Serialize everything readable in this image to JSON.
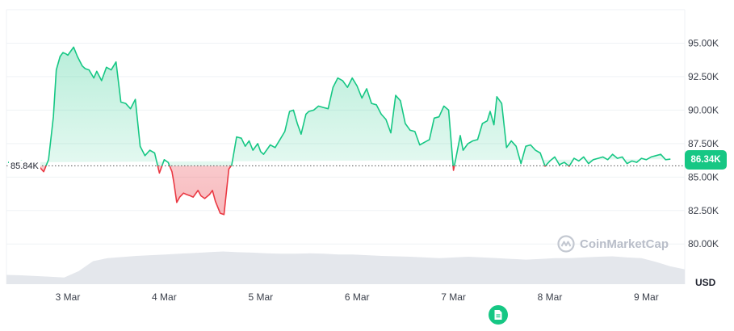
{
  "chart_data": {
    "type": "area",
    "title": "",
    "xlabel": "",
    "ylabel": "",
    "unit": "USD",
    "x_tick_labels": [
      "3 Mar",
      "4 Mar",
      "5 Mar",
      "6 Mar",
      "7 Mar",
      "8 Mar",
      "9 Mar"
    ],
    "y_tick_labels": [
      "80.00K",
      "82.50K",
      "85.00K",
      "87.50K",
      "90.00K",
      "92.50K",
      "95.00K"
    ],
    "y_ticks": [
      80000,
      82500,
      85000,
      87500,
      90000,
      92500,
      95000
    ],
    "ylim": [
      77000,
      97500
    ],
    "baseline_value": 85840,
    "baseline_label": "85.84K",
    "current_value": 86340,
    "current_label": "86.34K",
    "watermark": "CoinMarketCap",
    "grid": true,
    "colors": {
      "up": "#16c784",
      "down": "#ea3943",
      "grid": "#eff2f5",
      "volume": "#e4e7ec"
    },
    "series": [
      {
        "day_offset": [
          -0.62,
          -0.55,
          -0.48,
          -0.42,
          -0.35,
          -0.3,
          -0.25,
          -0.2,
          -0.15,
          -0.12,
          -0.08,
          -0.05,
          -0.02,
          0.0,
          0.03,
          0.06,
          0.1,
          0.15,
          0.18,
          0.22,
          0.27,
          0.3,
          0.35,
          0.4,
          0.45,
          0.5,
          0.55,
          0.6,
          0.65,
          0.7,
          0.75,
          0.8,
          0.85,
          0.9,
          0.95,
          1.0,
          1.04,
          1.08,
          1.1,
          1.13,
          1.16,
          1.2,
          1.23,
          1.27,
          1.3,
          1.35,
          1.38,
          1.42,
          1.47,
          1.5,
          1.53,
          1.58,
          1.62,
          1.67,
          1.7,
          1.75,
          1.8,
          1.84,
          1.88,
          1.92,
          1.97,
          2.0,
          2.03,
          2.06,
          2.1,
          2.15,
          2.2,
          2.25,
          2.3,
          2.34,
          2.38,
          2.42,
          2.47,
          2.5,
          2.55,
          2.6,
          2.65,
          2.7,
          2.75,
          2.8,
          2.85,
          2.9,
          2.95,
          3.0,
          3.05,
          3.1,
          3.15,
          3.2,
          3.25,
          3.3,
          3.35,
          3.4,
          3.45,
          3.5,
          3.55,
          3.6,
          3.65,
          3.7,
          3.75,
          3.8,
          3.85,
          3.9,
          3.95,
          4.0,
          4.03,
          4.07,
          4.1,
          4.15,
          4.2,
          4.25,
          4.3,
          4.35,
          4.38,
          4.42,
          4.45,
          4.5,
          4.55,
          4.6,
          4.65,
          4.7,
          4.75,
          4.8,
          4.85,
          4.9,
          4.95,
          5.0,
          5.05,
          5.1,
          5.12,
          5.15,
          5.2,
          5.25,
          5.3,
          5.35,
          5.4,
          5.45,
          5.5,
          5.55,
          5.6,
          5.65,
          5.7,
          5.75,
          5.8,
          5.85,
          5.9,
          5.95,
          6.0,
          6.05,
          6.1,
          6.15,
          6.2,
          6.25,
          6.3,
          6.35,
          6.4,
          6.45,
          6.5,
          6.55
        ],
        "values": [
          86100,
          86050,
          86200,
          85900,
          86100,
          85800,
          85400,
          86300,
          89500,
          93000,
          94000,
          94300,
          94200,
          94100,
          94400,
          94700,
          94000,
          93300,
          93100,
          93000,
          92400,
          92900,
          92200,
          93200,
          93000,
          93600,
          90600,
          90500,
          90100,
          90800,
          87300,
          86600,
          87000,
          86800,
          85300,
          86300,
          86100,
          85400,
          84600,
          83100,
          83500,
          83800,
          83700,
          83600,
          83500,
          84000,
          83600,
          83400,
          83700,
          84000,
          83200,
          82300,
          82200,
          85600,
          85900,
          88000,
          87900,
          87300,
          87700,
          87000,
          87500,
          86900,
          86700,
          87000,
          87400,
          87200,
          87800,
          88400,
          89900,
          90000,
          89000,
          88200,
          89700,
          89900,
          90000,
          90300,
          90200,
          90100,
          91700,
          92400,
          92200,
          91700,
          92400,
          91800,
          90900,
          91600,
          90500,
          90400,
          89700,
          89300,
          88300,
          91100,
          90700,
          89000,
          88500,
          88400,
          87400,
          87600,
          87800,
          89400,
          89500,
          90300,
          90000,
          85500,
          86600,
          88100,
          87000,
          87500,
          87700,
          87800,
          89000,
          89200,
          89900,
          88900,
          91000,
          90500,
          87200,
          87700,
          87300,
          86000,
          87300,
          87400,
          87000,
          86800,
          85800,
          86200,
          86500,
          85900,
          86000,
          86100,
          85800,
          86400,
          86200,
          86500,
          86000,
          86300,
          86400,
          86500,
          86300,
          86700,
          86400,
          86500,
          86000,
          86200,
          86100,
          86400,
          86300,
          86500,
          86600,
          86700,
          86300,
          86340
        ]
      }
    ],
    "volume": [
      0.25,
      0.24,
      0.22,
      0.2,
      0.18,
      0.35,
      0.62,
      0.7,
      0.73,
      0.76,
      0.78,
      0.8,
      0.82,
      0.84,
      0.86,
      0.88,
      0.86,
      0.85,
      0.83,
      0.82,
      0.82,
      0.83,
      0.82,
      0.8,
      0.8,
      0.78,
      0.76,
      0.75,
      0.74,
      0.72,
      0.7,
      0.72,
      0.74,
      0.72,
      0.7,
      0.68,
      0.66,
      0.68,
      0.7,
      0.7,
      0.72,
      0.74,
      0.75,
      0.72,
      0.7,
      0.6,
      0.48,
      0.4
    ]
  }
}
